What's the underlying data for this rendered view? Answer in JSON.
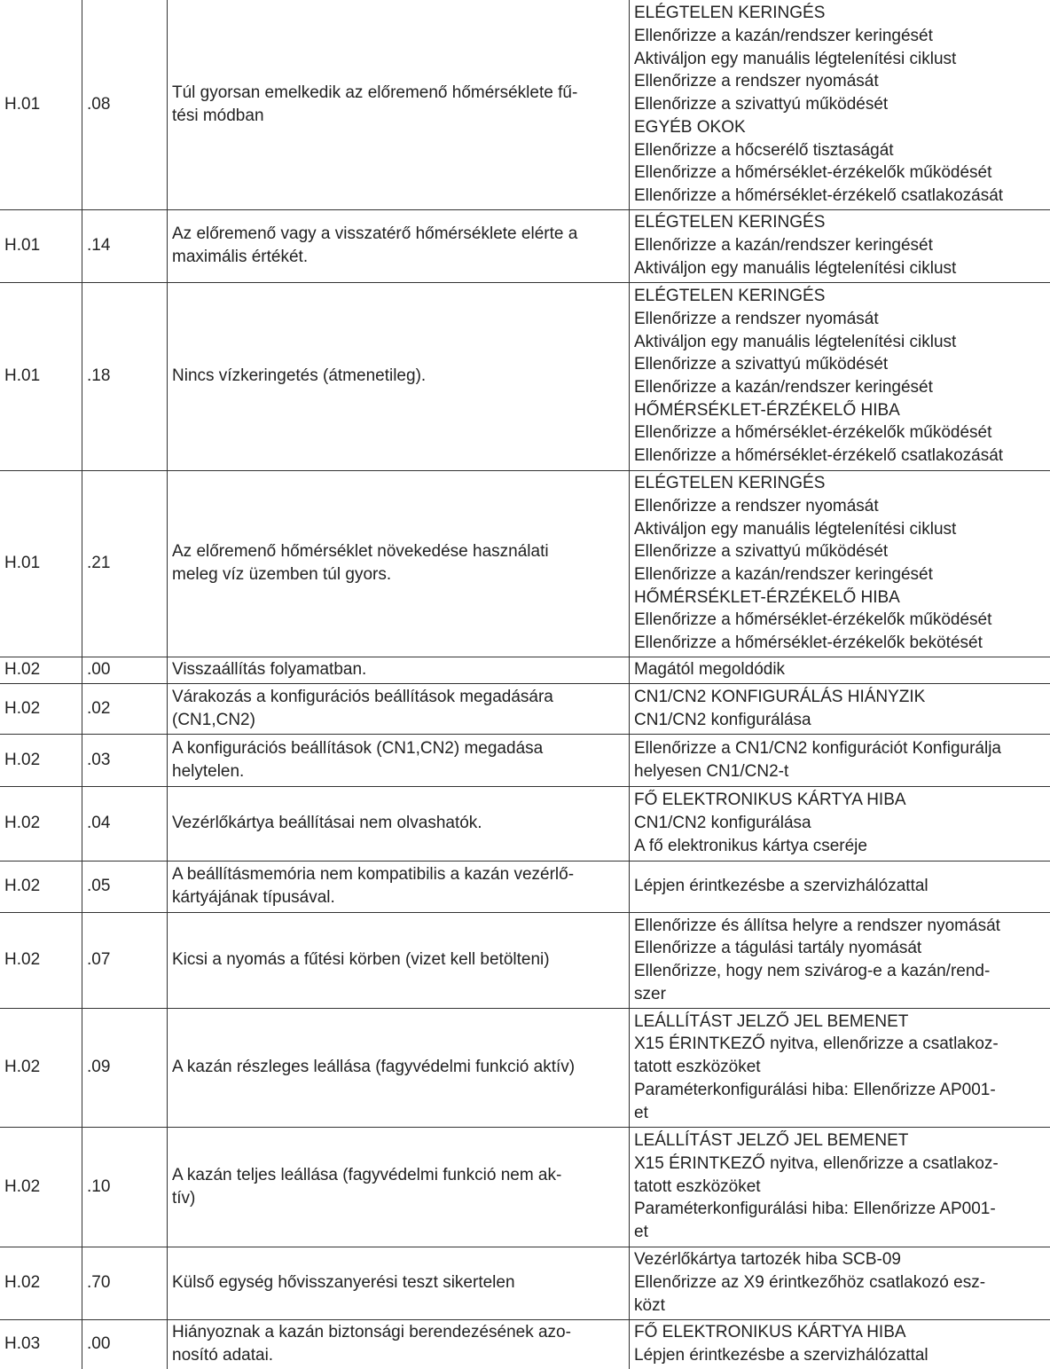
{
  "table": {
    "rows": [
      {
        "code": "H.01",
        "sub": ".08",
        "desc": [
          "Túl gyorsan emelkedik az előremenő hőmérséklete fű-",
          "tési módban"
        ],
        "remedy": [
          "ELÉGTELEN KERINGÉS",
          "Ellenőrizze a kazán/rendszer keringését",
          "Aktiváljon egy manuális légtelenítési ciklust",
          "Ellenőrizze a rendszer nyomását",
          "Ellenőrizze a szivattyú működését",
          "EGYÉB OKOK",
          "Ellenőrizze a hőcserélő tisztaságát",
          "Ellenőrizze a hőmérséklet-érzékelők működését",
          "Ellenőrizze a hőmérséklet-érzékelő csatlakozását"
        ]
      },
      {
        "code": "H.01",
        "sub": ".14",
        "desc": [
          "Az előremenő vagy a visszatérő hőmérséklete elérte a",
          "maximális értékét."
        ],
        "remedy": [
          "ELÉGTELEN KERINGÉS",
          "Ellenőrizze a kazán/rendszer keringését",
          "Aktiváljon egy manuális légtelenítési ciklust"
        ]
      },
      {
        "code": "H.01",
        "sub": ".18",
        "desc": [
          "Nincs vízkeringetés (átmenetileg)."
        ],
        "remedy": [
          "ELÉGTELEN KERINGÉS",
          "Ellenőrizze a rendszer nyomását",
          "Aktiváljon egy manuális légtelenítési ciklust",
          "Ellenőrizze a szivattyú működését",
          "Ellenőrizze a kazán/rendszer keringését",
          "HŐMÉRSÉKLET-ÉRZÉKELŐ HIBA",
          "Ellenőrizze a hőmérséklet-érzékelők működését",
          "Ellenőrizze a hőmérséklet-érzékelő csatlakozását"
        ]
      },
      {
        "code": "H.01",
        "sub": ".21",
        "desc": [
          "Az előremenő hőmérséklet növekedése használati",
          "meleg víz üzemben túl gyors."
        ],
        "remedy": [
          "ELÉGTELEN KERINGÉS",
          "Ellenőrizze a rendszer nyomását",
          "Aktiváljon egy manuális légtelenítési ciklust",
          "Ellenőrizze a szivattyú működését",
          "Ellenőrizze a kazán/rendszer keringését",
          "HŐMÉRSÉKLET-ÉRZÉKELŐ HIBA",
          "Ellenőrizze a hőmérséklet-érzékelők működését",
          "Ellenőrizze a hőmérséklet-érzékelők bekötését"
        ]
      },
      {
        "code": "H.02",
        "sub": ".00",
        "desc": [
          "Visszaállítás folyamatban."
        ],
        "remedy": [
          "Magától megoldódik"
        ]
      },
      {
        "code": "H.02",
        "sub": ".02",
        "desc": [
          "Várakozás a konfigurációs beállítások megadására",
          "(CN1,CN2)"
        ],
        "remedy": [
          "CN1/CN2 KONFIGURÁLÁS HIÁNYZIK",
          "CN1/CN2 konfigurálása"
        ]
      },
      {
        "code": "H.02",
        "sub": ".03",
        "desc": [
          "A konfigurációs beállítások (CN1,CN2) megadása",
          "helytelen."
        ],
        "remedy": [
          "Ellenőrizze a CN1/CN2 konfigurációt Konfigurálja",
          "helyesen CN1/CN2-t"
        ]
      },
      {
        "code": "H.02",
        "sub": ".04",
        "desc": [
          "Vezérlőkártya beállításai nem olvashatók."
        ],
        "remedy": [
          "FŐ ELEKTRONIKUS KÁRTYA HIBA",
          "CN1/CN2 konfigurálása",
          "A fő elektronikus kártya cseréje"
        ]
      },
      {
        "code": "H.02",
        "sub": ".05",
        "desc": [
          "A beállításmemória nem kompatibilis a kazán vezérlő-",
          "kártyájának típusával."
        ],
        "remedy": [
          "Lépjen érintkezésbe a szervizhálózattal"
        ]
      },
      {
        "code": "H.02",
        "sub": ".07",
        "desc": [
          "Kicsi a nyomás a fűtési körben (vizet kell betölteni)"
        ],
        "remedy": [
          "Ellenőrizze és állítsa helyre a rendszer nyomását",
          "Ellenőrizze a tágulási tartály nyomását",
          "Ellenőrizze, hogy nem szivárog-e a kazán/rend-",
          "szer"
        ]
      },
      {
        "code": "H.02",
        "sub": ".09",
        "desc": [
          "A kazán részleges leállása (fagyvédelmi funkció aktív)"
        ],
        "remedy": [
          "LEÁLLÍTÁST JELZŐ JEL BEMENET",
          "X15 ÉRINTKEZŐ nyitva, ellenőrizze a csatlakoz-",
          "tatott eszközöket",
          "Paraméterkonfigurálási hiba: Ellenőrizze AP001-",
          "et"
        ]
      },
      {
        "code": "H.02",
        "sub": ".10",
        "desc": [
          "A kazán teljes leállása (fagyvédelmi funkció nem ak-",
          "tív)"
        ],
        "remedy": [
          "LEÁLLÍTÁST JELZŐ JEL BEMENET",
          "X15 ÉRINTKEZŐ nyitva, ellenőrizze a csatlakoz-",
          "tatott eszközöket",
          "Paraméterkonfigurálási hiba: Ellenőrizze AP001-",
          "et"
        ]
      },
      {
        "code": "H.02",
        "sub": ".70",
        "desc": [
          "Külső egység hővisszanyerési teszt sikertelen"
        ],
        "remedy": [
          "Vezérlőkártya tartozék hiba SCB-09",
          "Ellenőrizze az X9 érintkezőhöz csatlakozó esz-",
          "közt"
        ]
      },
      {
        "code": "H.03",
        "sub": ".00",
        "desc": [
          "Hiányoznak a kazán biztonsági berendezésének azo-",
          "nosító adatai."
        ],
        "remedy": [
          "FŐ ELEKTRONIKUS KÁRTYA HIBA",
          "Lépjen érintkezésbe a szervizhálózattal"
        ]
      }
    ]
  }
}
